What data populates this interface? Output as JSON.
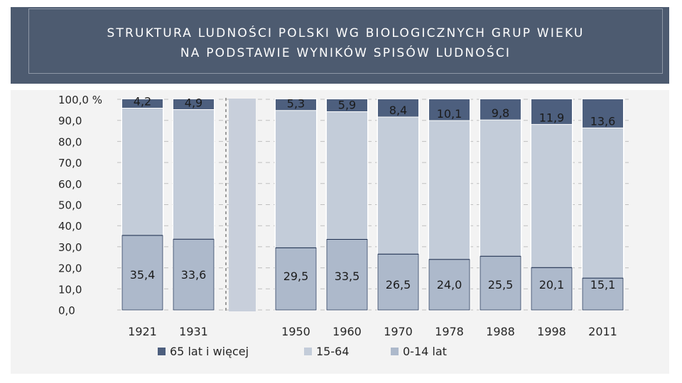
{
  "slide": {
    "title": "STRUKTURA  LUDNOŚCI POLSKI  WG  BIOLOGICZNYCH GRUP WIEKU\nNA PODSTAWIE WYNIKÓW SPISÓW LUDNOŚCI"
  },
  "chart_data": {
    "type": "bar",
    "stacked": true,
    "categories": [
      "1921",
      "1931",
      "1950",
      "1960",
      "1970",
      "1978",
      "1988",
      "1998",
      "2011"
    ],
    "series": [
      {
        "name": "0-14 lat",
        "values": [
          35.4,
          33.6,
          29.5,
          33.5,
          26.5,
          24.0,
          25.5,
          20.1,
          15.1
        ],
        "labels": [
          "35,4",
          "33,6",
          "29,5",
          "33,5",
          "26,5",
          "24,0",
          "25,5",
          "20,1",
          "15,1"
        ],
        "color": "#adb9cb"
      },
      {
        "name": "15-64",
        "values": [
          60.4,
          61.5,
          65.2,
          60.6,
          65.1,
          65.9,
          64.7,
          68.0,
          71.3
        ],
        "color": "#c3ccd9"
      },
      {
        "name": "65 lat i więcej",
        "values": [
          4.2,
          4.9,
          5.3,
          5.9,
          8.4,
          10.1,
          9.8,
          11.9,
          13.6
        ],
        "labels": [
          "4,2",
          "4,9",
          "5,3",
          "5,9",
          "8,4",
          "10,1",
          "9,8",
          "11,9",
          "13,6"
        ],
        "color": "#4d5f7e"
      }
    ],
    "y_ticks": [
      "0,0",
      "10,0",
      "20,0",
      "30,0",
      "40,0",
      "50,0",
      "60,0",
      "70,0",
      "80,0",
      "90,0",
      "100,0 %"
    ],
    "ylim": [
      0,
      100
    ],
    "grid": "dashed horizontal",
    "legend_position": "bottom",
    "legend_order": [
      "65 lat i więcej",
      "15-64",
      "0-14 lat"
    ],
    "axis_break_between": [
      "1931",
      "1950"
    ]
  }
}
